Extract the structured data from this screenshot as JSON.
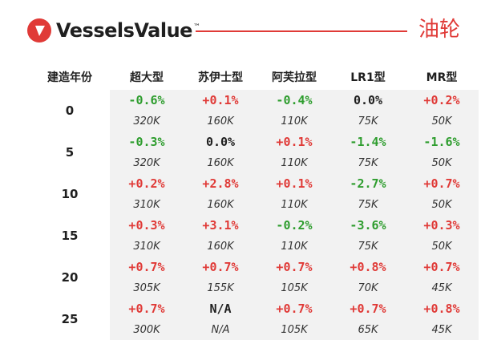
{
  "header": {
    "brand": "VesselsValue",
    "trademark": "™",
    "title": "油轮",
    "logo_icon": "vessels-value-logo-icon",
    "accent_color": "#e03a37"
  },
  "table": {
    "headers": [
      "建造年份",
      "超大型",
      "苏伊士型",
      "阿芙拉型",
      "LR1型",
      "MR型"
    ],
    "rows": [
      {
        "year": "0",
        "changes": [
          "-0.6%",
          "+0.1%",
          "-0.4%",
          "0.0%",
          "+0.2%"
        ],
        "values": [
          "320K",
          "160K",
          "110K",
          "75K",
          "50K"
        ]
      },
      {
        "year": "5",
        "changes": [
          "-0.3%",
          "0.0%",
          "+0.1%",
          "-1.4%",
          "-1.6%"
        ],
        "values": [
          "320K",
          "160K",
          "110K",
          "75K",
          "50K"
        ]
      },
      {
        "year": "10",
        "changes": [
          "+0.2%",
          "+2.8%",
          "+0.1%",
          "-2.7%",
          "+0.7%"
        ],
        "values": [
          "310K",
          "160K",
          "110K",
          "75K",
          "50K"
        ]
      },
      {
        "year": "15",
        "changes": [
          "+0.3%",
          "+3.1%",
          "-0.2%",
          "-3.6%",
          "+0.3%"
        ],
        "values": [
          "310K",
          "160K",
          "110K",
          "75K",
          "50K"
        ]
      },
      {
        "year": "20",
        "changes": [
          "+0.7%",
          "+0.7%",
          "+0.7%",
          "+0.8%",
          "+0.7%"
        ],
        "values": [
          "305K",
          "155K",
          "105K",
          "70K",
          "45K"
        ]
      },
      {
        "year": "25",
        "changes": [
          "+0.7%",
          "N/A",
          "+0.7%",
          "+0.7%",
          "+0.8%"
        ],
        "values": [
          "300K",
          "N/A",
          "105K",
          "65K",
          "45K"
        ]
      }
    ],
    "colors": {
      "up": "#e03a37",
      "down": "#2e9d2e",
      "flat": "#1f1f1f"
    }
  }
}
